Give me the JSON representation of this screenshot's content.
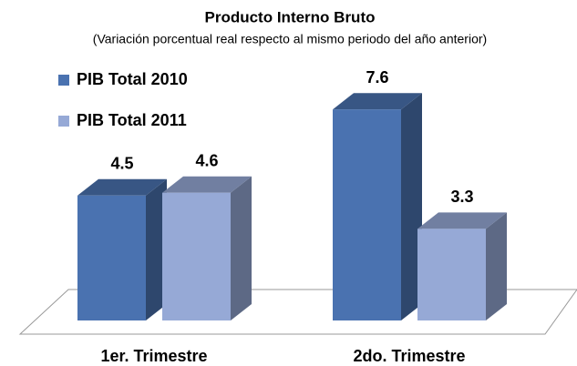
{
  "chart_data": {
    "type": "bar3d",
    "title": "Producto Interno Bruto",
    "subtitle": "(Variación porcentual real respecto al mismo periodo del año anterior)",
    "categories": [
      "1er. Trimestre",
      "2do. Trimestre"
    ],
    "series": [
      {
        "name": "PIB Total 2010",
        "color": "#4a72b0",
        "values": [
          4.5,
          7.6
        ]
      },
      {
        "name": "PIB Total 2011",
        "color": "#96a9d6",
        "values": [
          4.6,
          3.3
        ]
      }
    ]
  }
}
